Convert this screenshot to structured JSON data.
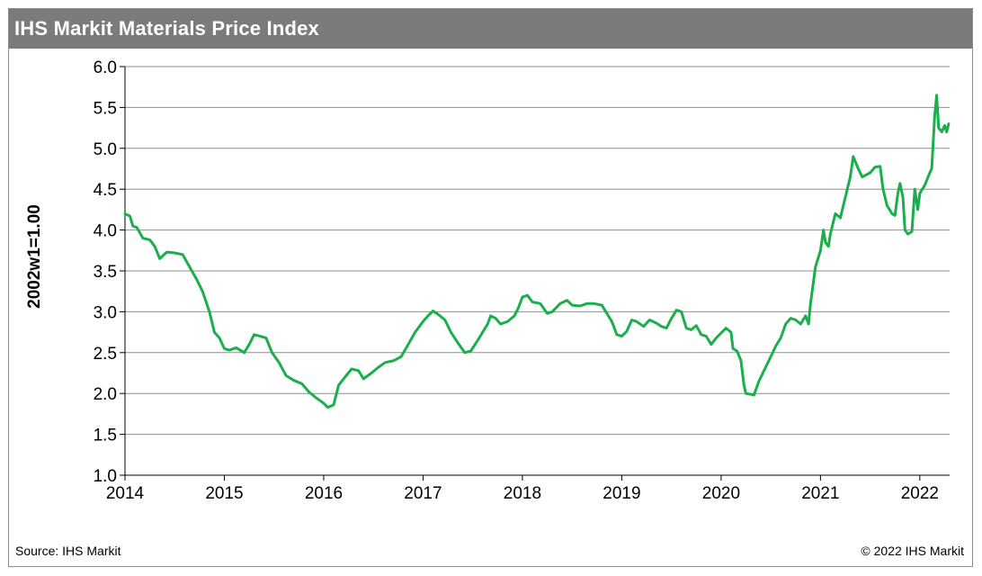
{
  "chart_data": {
    "type": "line",
    "title": "IHS Markit Materials Price Index",
    "ylabel": "2002w1=1.00",
    "xlabel": "",
    "x_ticks": [
      "2014",
      "2015",
      "2016",
      "2017",
      "2018",
      "2019",
      "2020",
      "2021",
      "2022"
    ],
    "y_ticks": [
      "1.0",
      "1.5",
      "2.0",
      "2.5",
      "3.0",
      "3.5",
      "4.0",
      "4.5",
      "5.0",
      "5.5",
      "6.0"
    ],
    "xlim": [
      2014.0,
      2022.3
    ],
    "ylim": [
      1.0,
      6.0
    ],
    "grid": "horizontal",
    "legend": "none",
    "series": [
      {
        "color": "#1aaf4b",
        "points": [
          [
            2014.0,
            4.2
          ],
          [
            2014.05,
            4.17
          ],
          [
            2014.08,
            4.05
          ],
          [
            2014.12,
            4.03
          ],
          [
            2014.18,
            3.9
          ],
          [
            2014.25,
            3.88
          ],
          [
            2014.3,
            3.8
          ],
          [
            2014.35,
            3.65
          ],
          [
            2014.42,
            3.73
          ],
          [
            2014.5,
            3.72
          ],
          [
            2014.58,
            3.7
          ],
          [
            2014.65,
            3.55
          ],
          [
            2014.72,
            3.4
          ],
          [
            2014.78,
            3.25
          ],
          [
            2014.85,
            3.0
          ],
          [
            2014.9,
            2.75
          ],
          [
            2014.95,
            2.68
          ],
          [
            2015.0,
            2.55
          ],
          [
            2015.05,
            2.53
          ],
          [
            2015.12,
            2.56
          ],
          [
            2015.2,
            2.5
          ],
          [
            2015.25,
            2.6
          ],
          [
            2015.3,
            2.72
          ],
          [
            2015.36,
            2.7
          ],
          [
            2015.42,
            2.68
          ],
          [
            2015.48,
            2.5
          ],
          [
            2015.55,
            2.38
          ],
          [
            2015.62,
            2.22
          ],
          [
            2015.7,
            2.16
          ],
          [
            2015.78,
            2.12
          ],
          [
            2015.85,
            2.02
          ],
          [
            2015.92,
            1.95
          ],
          [
            2016.0,
            1.88
          ],
          [
            2016.04,
            1.83
          ],
          [
            2016.1,
            1.86
          ],
          [
            2016.15,
            2.1
          ],
          [
            2016.2,
            2.18
          ],
          [
            2016.28,
            2.3
          ],
          [
            2016.35,
            2.28
          ],
          [
            2016.4,
            2.18
          ],
          [
            2016.48,
            2.25
          ],
          [
            2016.55,
            2.32
          ],
          [
            2016.62,
            2.38
          ],
          [
            2016.7,
            2.4
          ],
          [
            2016.78,
            2.45
          ],
          [
            2016.85,
            2.6
          ],
          [
            2016.92,
            2.75
          ],
          [
            2017.0,
            2.88
          ],
          [
            2017.05,
            2.95
          ],
          [
            2017.1,
            3.01
          ],
          [
            2017.15,
            2.97
          ],
          [
            2017.22,
            2.9
          ],
          [
            2017.28,
            2.75
          ],
          [
            2017.35,
            2.62
          ],
          [
            2017.42,
            2.5
          ],
          [
            2017.48,
            2.52
          ],
          [
            2017.55,
            2.65
          ],
          [
            2017.6,
            2.75
          ],
          [
            2017.65,
            2.85
          ],
          [
            2017.68,
            2.95
          ],
          [
            2017.73,
            2.92
          ],
          [
            2017.78,
            2.85
          ],
          [
            2017.85,
            2.88
          ],
          [
            2017.92,
            2.95
          ],
          [
            2017.96,
            3.05
          ],
          [
            2018.0,
            3.18
          ],
          [
            2018.05,
            3.2
          ],
          [
            2018.1,
            3.12
          ],
          [
            2018.18,
            3.1
          ],
          [
            2018.25,
            2.98
          ],
          [
            2018.3,
            3.0
          ],
          [
            2018.38,
            3.1
          ],
          [
            2018.45,
            3.14
          ],
          [
            2018.5,
            3.08
          ],
          [
            2018.58,
            3.07
          ],
          [
            2018.65,
            3.1
          ],
          [
            2018.72,
            3.1
          ],
          [
            2018.8,
            3.08
          ],
          [
            2018.85,
            2.98
          ],
          [
            2018.9,
            2.88
          ],
          [
            2018.95,
            2.72
          ],
          [
            2019.0,
            2.7
          ],
          [
            2019.05,
            2.76
          ],
          [
            2019.1,
            2.9
          ],
          [
            2019.15,
            2.88
          ],
          [
            2019.22,
            2.82
          ],
          [
            2019.28,
            2.9
          ],
          [
            2019.35,
            2.86
          ],
          [
            2019.4,
            2.82
          ],
          [
            2019.45,
            2.8
          ],
          [
            2019.5,
            2.92
          ],
          [
            2019.55,
            3.02
          ],
          [
            2019.6,
            3.0
          ],
          [
            2019.65,
            2.8
          ],
          [
            2019.7,
            2.78
          ],
          [
            2019.75,
            2.83
          ],
          [
            2019.8,
            2.72
          ],
          [
            2019.85,
            2.7
          ],
          [
            2019.9,
            2.6
          ],
          [
            2019.95,
            2.68
          ],
          [
            2020.0,
            2.74
          ],
          [
            2020.05,
            2.8
          ],
          [
            2020.1,
            2.75
          ],
          [
            2020.12,
            2.55
          ],
          [
            2020.16,
            2.52
          ],
          [
            2020.2,
            2.4
          ],
          [
            2020.23,
            2.1
          ],
          [
            2020.25,
            2.0
          ],
          [
            2020.3,
            1.99
          ],
          [
            2020.33,
            1.98
          ],
          [
            2020.38,
            2.15
          ],
          [
            2020.42,
            2.25
          ],
          [
            2020.48,
            2.4
          ],
          [
            2020.55,
            2.58
          ],
          [
            2020.6,
            2.68
          ],
          [
            2020.65,
            2.85
          ],
          [
            2020.7,
            2.92
          ],
          [
            2020.75,
            2.9
          ],
          [
            2020.8,
            2.85
          ],
          [
            2020.85,
            2.95
          ],
          [
            2020.88,
            2.85
          ],
          [
            2020.9,
            3.1
          ],
          [
            2020.95,
            3.55
          ],
          [
            2021.0,
            3.75
          ],
          [
            2021.03,
            4.0
          ],
          [
            2021.05,
            3.85
          ],
          [
            2021.08,
            3.8
          ],
          [
            2021.1,
            3.95
          ],
          [
            2021.15,
            4.2
          ],
          [
            2021.2,
            4.15
          ],
          [
            2021.25,
            4.4
          ],
          [
            2021.3,
            4.65
          ],
          [
            2021.33,
            4.9
          ],
          [
            2021.38,
            4.75
          ],
          [
            2021.42,
            4.65
          ],
          [
            2021.5,
            4.7
          ],
          [
            2021.55,
            4.77
          ],
          [
            2021.6,
            4.78
          ],
          [
            2021.63,
            4.5
          ],
          [
            2021.67,
            4.3
          ],
          [
            2021.72,
            4.2
          ],
          [
            2021.75,
            4.18
          ],
          [
            2021.78,
            4.45
          ],
          [
            2021.8,
            4.57
          ],
          [
            2021.83,
            4.4
          ],
          [
            2021.85,
            4.0
          ],
          [
            2021.88,
            3.95
          ],
          [
            2021.92,
            3.98
          ],
          [
            2021.95,
            4.5
          ],
          [
            2021.98,
            4.25
          ],
          [
            2022.0,
            4.45
          ],
          [
            2022.05,
            4.55
          ],
          [
            2022.1,
            4.7
          ],
          [
            2022.12,
            4.75
          ],
          [
            2022.15,
            5.4
          ],
          [
            2022.17,
            5.65
          ],
          [
            2022.19,
            5.25
          ],
          [
            2022.22,
            5.2
          ],
          [
            2022.25,
            5.28
          ],
          [
            2022.27,
            5.2
          ],
          [
            2022.29,
            5.3
          ]
        ]
      }
    ]
  },
  "notes": {
    "source": "Source: IHS Markit",
    "copyright": "© 2022 IHS Markit"
  }
}
